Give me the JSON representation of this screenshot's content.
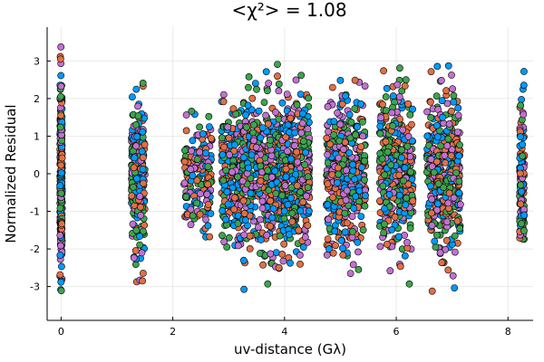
{
  "chart_data": {
    "type": "scatter",
    "title": "<χ²> = 1.08",
    "xlabel": "uv-distance (Gλ)",
    "ylabel": "Normalized Residual",
    "xlim": [
      -0.25,
      8.45
    ],
    "ylim": [
      -3.9,
      3.9
    ],
    "xticks": [
      0,
      2,
      4,
      6,
      8
    ],
    "yticks": [
      -3,
      -2,
      -1,
      0,
      1,
      2,
      3
    ],
    "grid": true,
    "legend": "none",
    "colors": [
      "#009AFA",
      "#E26F46",
      "#3DA44D",
      "#C271D2"
    ],
    "marker_stroke": "#000000",
    "clusters": [
      {
        "x": 0.0,
        "halfwidth": 0.02,
        "ymin": -3.2,
        "ymax": 3.7,
        "spread": 1.35,
        "n": 260
      },
      {
        "x": 1.38,
        "halfwidth": 0.12,
        "ymin": -2.9,
        "ymax": 2.75,
        "spread": 1.0,
        "n": 240
      },
      {
        "x": 2.45,
        "halfwidth": 0.25,
        "ymin": -1.8,
        "ymax": 2.65,
        "spread": 0.8,
        "n": 170
      },
      {
        "x": 3.05,
        "halfwidth": 0.18,
        "ymin": -2.0,
        "ymax": 2.2,
        "spread": 0.9,
        "n": 210
      },
      {
        "x": 3.6,
        "halfwidth": 0.35,
        "ymin": -3.2,
        "ymax": 3.45,
        "spread": 1.0,
        "n": 480
      },
      {
        "x": 4.2,
        "halfwidth": 0.25,
        "ymin": -3.3,
        "ymax": 2.8,
        "spread": 1.0,
        "n": 340
      },
      {
        "x": 5.1,
        "halfwidth": 0.35,
        "ymin": -2.7,
        "ymax": 2.65,
        "spread": 1.0,
        "n": 430
      },
      {
        "x": 6.0,
        "halfwidth": 0.3,
        "ymin": -3.0,
        "ymax": 2.9,
        "spread": 1.0,
        "n": 400
      },
      {
        "x": 6.85,
        "halfwidth": 0.3,
        "ymin": -3.7,
        "ymax": 3.0,
        "spread": 1.0,
        "n": 420
      },
      {
        "x": 8.25,
        "halfwidth": 0.04,
        "ymin": -1.8,
        "ymax": 2.85,
        "spread": 1.0,
        "n": 130
      }
    ]
  }
}
